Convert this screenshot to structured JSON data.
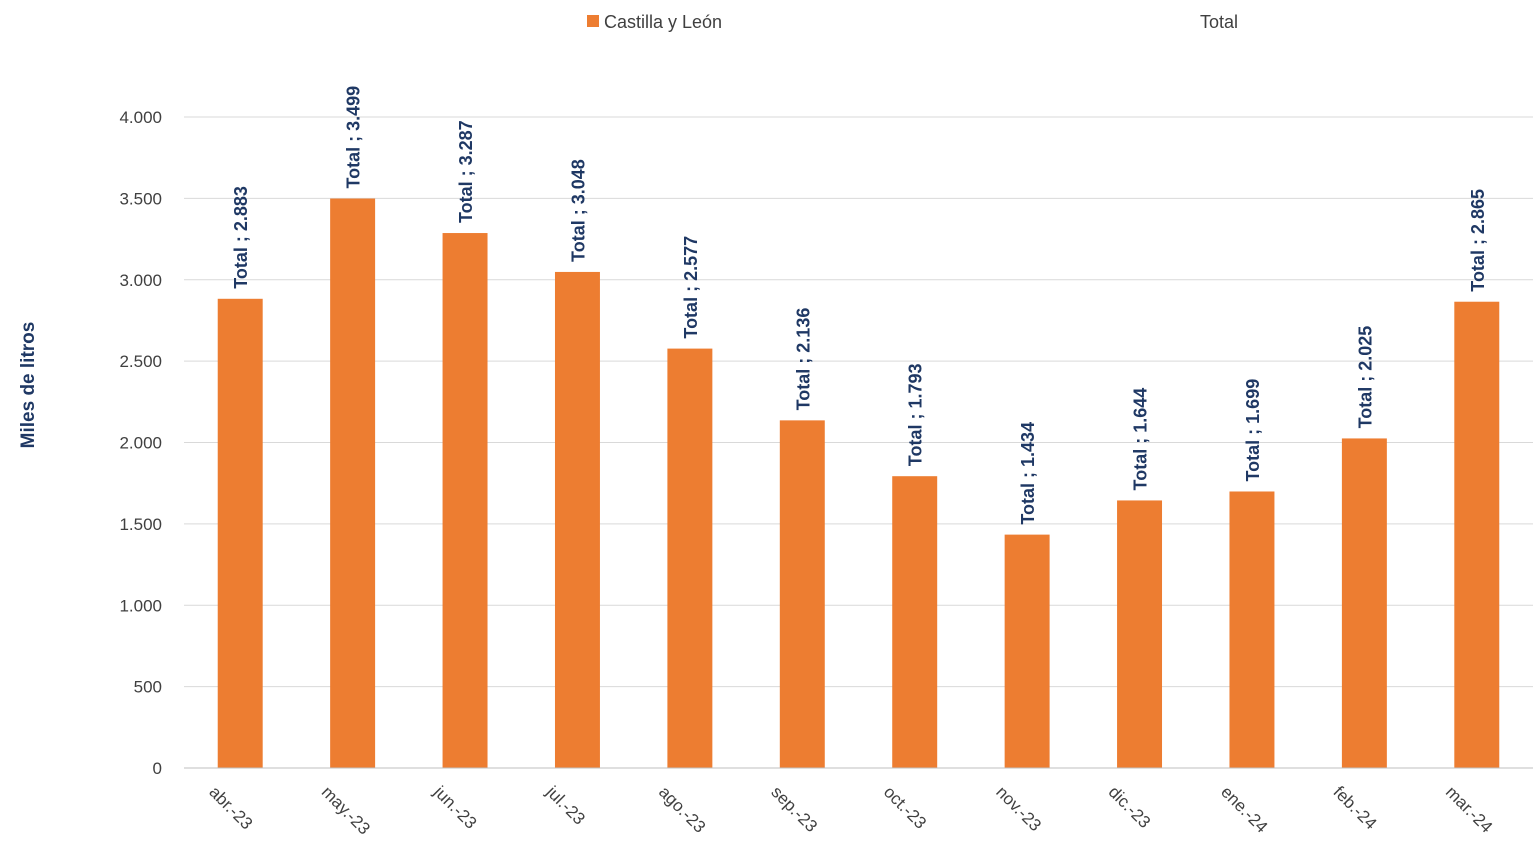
{
  "chart_data": {
    "type": "bar",
    "ylabel": "Miles de litros",
    "xlabel": "",
    "ylim": [
      0,
      4000
    ],
    "yticks": [
      0,
      500,
      1000,
      1500,
      2000,
      2500,
      3000,
      3500,
      4000
    ],
    "ytick_labels": [
      "0",
      "500",
      "1.000",
      "1.500",
      "2.000",
      "2.500",
      "3.000",
      "3.500",
      "4.000"
    ],
    "grid": true,
    "legend": {
      "placement": "top",
      "entries": [
        "Castilla y León",
        "Total"
      ]
    },
    "categories": [
      "abr.-23",
      "may.-23",
      "jun.-23",
      "jul.-23",
      "ago.-23",
      "sep.-23",
      "oct.-23",
      "nov.-23",
      "dic.-23",
      "ene.-24",
      "feb.-24",
      "mar.-24"
    ],
    "series": [
      {
        "name": "Castilla y León",
        "color": "#ed7d31",
        "values": [
          2883,
          3499,
          3287,
          3048,
          2577,
          2136,
          1793,
          1434,
          1644,
          1699,
          2025,
          2865
        ],
        "data_labels": [
          "Total ; 2.883",
          "Total ; 3.499",
          "Total ; 3.287",
          "Total ; 3.048",
          "Total ; 2.577",
          "Total ; 2.136",
          "Total ; 1.793",
          "Total ; 1.434",
          "Total ; 1.644",
          "Total ; 1.699",
          "Total ; 2.025",
          "Total ; 2.865"
        ]
      }
    ],
    "colors": {
      "bar": "#ed7d31",
      "label": "#1f3864",
      "grid": "#d9d9d9",
      "axis": "#bfbfbf",
      "text": "#404040"
    }
  }
}
